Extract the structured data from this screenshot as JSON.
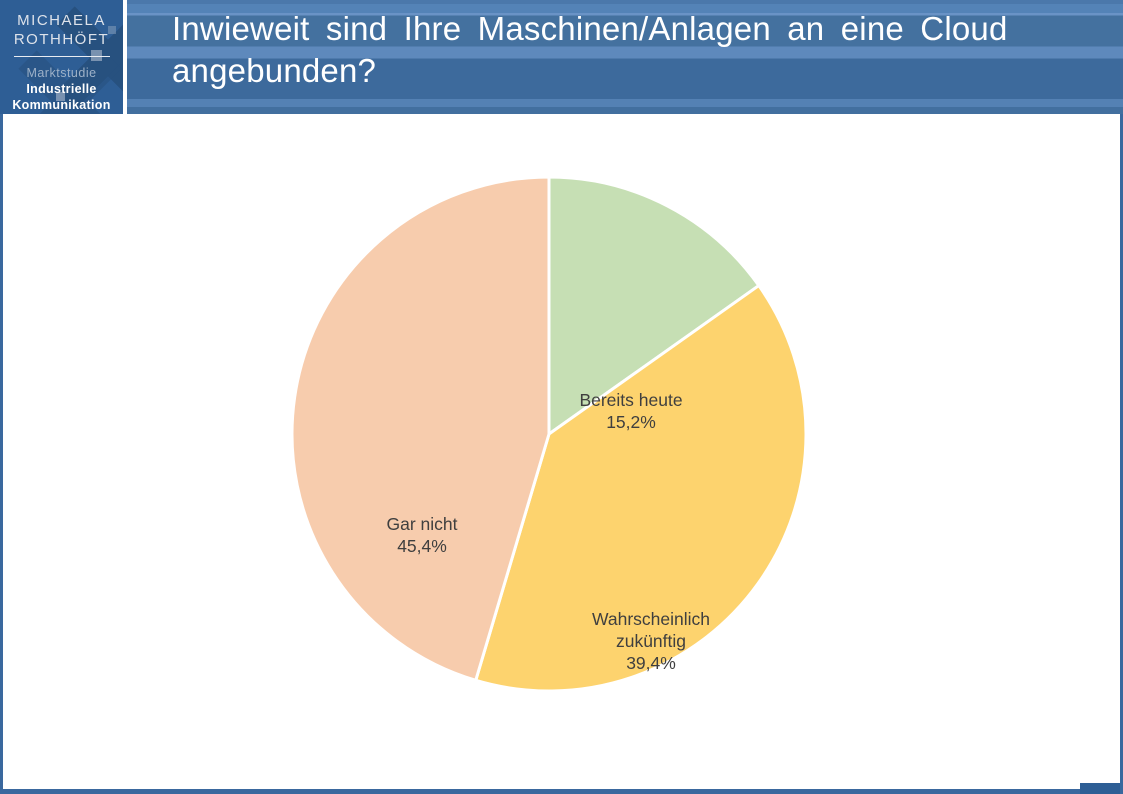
{
  "header": {
    "logo": {
      "name_line1": "MICHAELA",
      "name_line2": "ROTHHÖFT",
      "subtitle1": "Marktstudie",
      "subtitle2": "Industrielle",
      "subtitle3": "Kommunikation"
    },
    "title": "Inwieweit sind Ihre Maschinen/Anlagen an eine Cloud angebunden?"
  },
  "chart_data": {
    "type": "pie",
    "title": "Inwieweit sind Ihre Maschinen/Anlagen an eine Cloud angebunden?",
    "start_angle_deg": 0,
    "direction": "clockwise",
    "slices": [
      {
        "label": "Bereits heute",
        "value": 15.2,
        "value_label": "15,2%",
        "color": "#c6dfb4"
      },
      {
        "label": "Wahrscheinlich zukünftig",
        "value": 39.4,
        "value_label": "39,4%",
        "color": "#fdd36e"
      },
      {
        "label": "Gar nicht",
        "value": 45.4,
        "value_label": "45,4%",
        "color": "#f7ccad"
      }
    ],
    "slice_border_color": "#ffffff",
    "label_color": "#3f3f3f",
    "legend": "none"
  },
  "colors": {
    "logo_background": "#2e5e95",
    "logo_pattern": "#27517f",
    "title_band_base": "#44719f",
    "slide_frame": "#3a689e",
    "bottom_accent": "#2e5e95",
    "title_text": "#ffffff"
  }
}
